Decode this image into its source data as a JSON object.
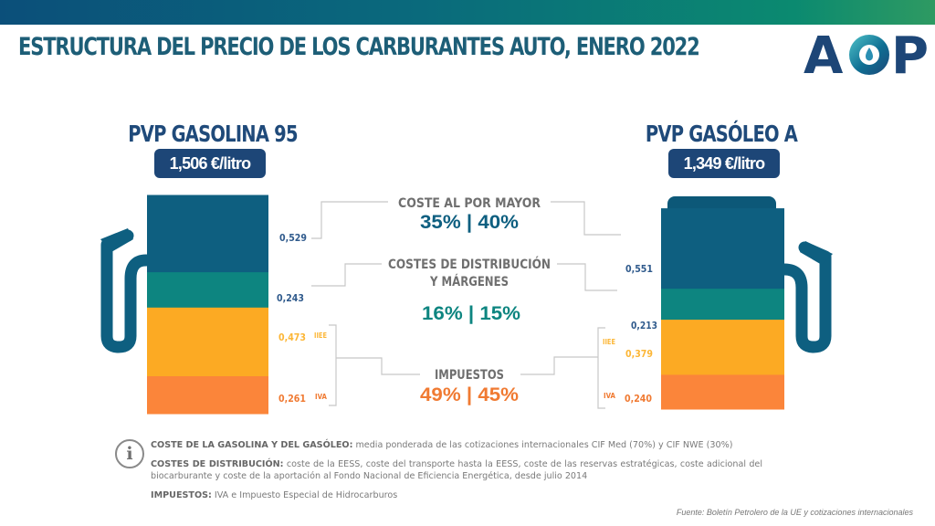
{
  "title": "ESTRUCTURA DEL PRECIO DE LOS CARBURANTES AUTO, ENERO 2022",
  "logo": {
    "text_left": "A",
    "text_right": "P",
    "icon": "drop-logo-icon"
  },
  "colors": {
    "brand_dark": "#1d4677",
    "wholesale": "#0e5f80",
    "distribution": "#0d8580",
    "iiee": "#fcaa23",
    "iva": "#fb853a",
    "pump": "#0e5f80",
    "connector": "#c8c8c8",
    "label_gray": "#6f6f6f"
  },
  "gasoline": {
    "heading": "PVP GASOLINA 95",
    "price": "1,506 €/litro",
    "segments": [
      {
        "key": "wholesale",
        "value": 0.529,
        "label": "0,529",
        "tag": ""
      },
      {
        "key": "distribution",
        "value": 0.243,
        "label": "0,243",
        "tag": ""
      },
      {
        "key": "iiee",
        "value": 0.473,
        "label": "0,473",
        "tag": "IIEE"
      },
      {
        "key": "iva",
        "value": 0.261,
        "label": "0,261",
        "tag": "IVA"
      }
    ]
  },
  "diesel": {
    "heading": "PVP GASÓLEO A",
    "price": "1,349 €/litro",
    "segments": [
      {
        "key": "wholesale",
        "value": 0.551,
        "label": "0,551",
        "tag": ""
      },
      {
        "key": "distribution",
        "value": 0.213,
        "label": "0,213",
        "tag": ""
      },
      {
        "key": "iiee",
        "value": 0.379,
        "label": "0,379",
        "tag": "IIEE"
      },
      {
        "key": "iva",
        "value": 0.24,
        "label": "0,240",
        "tag": "IVA"
      }
    ]
  },
  "categories": [
    {
      "key": "wholesale",
      "label_lines": [
        "COSTE AL POR MAYOR"
      ],
      "share": "35% | 40%"
    },
    {
      "key": "distribution",
      "label_lines": [
        "COSTES DE DISTRIBUCIÓN",
        "Y MÁRGENES"
      ],
      "share": "16% | 15%"
    },
    {
      "key": "taxes",
      "label_lines": [
        "IMPUESTOS"
      ],
      "share": "49% | 45%"
    }
  ],
  "notes": {
    "fuel_cost_bold": "COSTE DE LA GASOLINA Y DEL GASÓLEO:",
    "fuel_cost_text": " media ponderada de las cotizaciones internacionales CIF Med (70%) y CIF NWE (30%)",
    "distribution_bold": "COSTES DE DISTRIBUCIÓN:",
    "distribution_text": " coste de la EESS, coste del transporte hasta la EESS, coste de las reservas estratégicas, coste adicional del biocarburante y coste de la aportación al Fondo  Nacional de Eficiencia Energética, desde julio 2014",
    "taxes_bold": "IMPUESTOS:",
    "taxes_text": " IVA e Impuesto  Especial de Hidrocarburos"
  },
  "source": "Fuente: Boletín Petrolero de la UE y cotizaciones internacionales",
  "chart_data": {
    "type": "bar",
    "stacked": true,
    "title": "ESTRUCTURA DEL PRECIO DE LOS CARBURANTES AUTO, ENERO 2022",
    "unit": "€/litro",
    "categories": [
      "PVP GASOLINA 95",
      "PVP GASÓLEO A"
    ],
    "totals": [
      1.506,
      1.349
    ],
    "series": [
      {
        "name": "Coste al por mayor",
        "values": [
          0.529,
          0.551
        ],
        "share_pct": [
          35,
          40
        ]
      },
      {
        "name": "Costes de distribución y márgenes",
        "values": [
          0.243,
          0.213
        ],
        "share_pct": [
          16,
          15
        ]
      },
      {
        "name": "IIEE",
        "values": [
          0.473,
          0.379
        ]
      },
      {
        "name": "IVA",
        "values": [
          0.261,
          0.24
        ]
      }
    ],
    "taxes_share_pct": [
      49,
      45
    ],
    "xlabel": "",
    "ylabel": ""
  }
}
